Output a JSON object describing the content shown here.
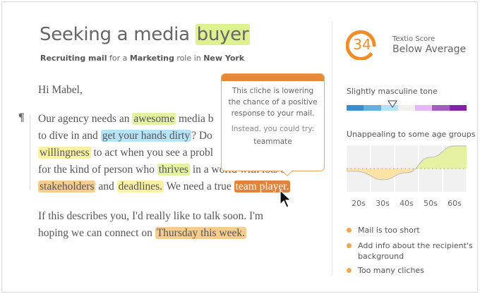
{
  "header": {
    "title_prefix": "Seeking a media ",
    "title_highlight": "buyer",
    "sub": {
      "t1": "Recruiting mail",
      "t2": " for a ",
      "t3": "Marketing",
      "t4": " role in ",
      "t5": "New York"
    }
  },
  "body": {
    "greeting": "Hi Mabel,",
    "para_icon": "pilcrow-icon",
    "para_symbol": "¶",
    "p1": {
      "l1": [
        "Our agency needs an ",
        "awesome",
        " media b"
      ],
      "l2": [
        "to dive in and ",
        "get your hands dirty",
        "? Do"
      ],
      "l3": [
        "willingness",
        " to act when you see a probl"
      ],
      "l4": [
        "for the kind of person who ",
        "thrives",
        " in a world with lots of"
      ],
      "l5": [
        "stakeholders",
        " and ",
        "deadlines.",
        " We need a true ",
        "team player."
      ]
    },
    "p2": {
      "l1": "If this describes you, I'd really like to talk soon. I'm",
      "l2": [
        "hoping we can connect on ",
        "Thursday this week."
      ]
    }
  },
  "tooltip": {
    "message": "This cliche is lowering the chance of a positive response to your mail.",
    "alt_label": "Instead, you could try:",
    "suggestion": "teammate"
  },
  "sidebar": {
    "score": 34,
    "score_label": "Textio Score",
    "score_rating": "Below Average",
    "score_color": "#f28c28",
    "tone": {
      "label": "Slightly masculine tone",
      "segments": [
        "#3b8fd0",
        "#63b1e3",
        "#b6e2f7",
        "#f1f1f1",
        "#e6b8f3",
        "#a45cc0",
        "#8324a8"
      ],
      "marker_position": 0.38
    },
    "age": {
      "label": "Unappealing to some age groups",
      "groups": [
        "20s",
        "30s",
        "40s",
        "50s",
        "60s"
      ],
      "values": [
        -0.1,
        -0.4,
        -0.15,
        0.4,
        0.8
      ]
    },
    "issues": [
      "Mail is too short",
      "Add info about the recipient's background",
      "Too many cliches"
    ],
    "bullet_color": "#eea84c"
  }
}
